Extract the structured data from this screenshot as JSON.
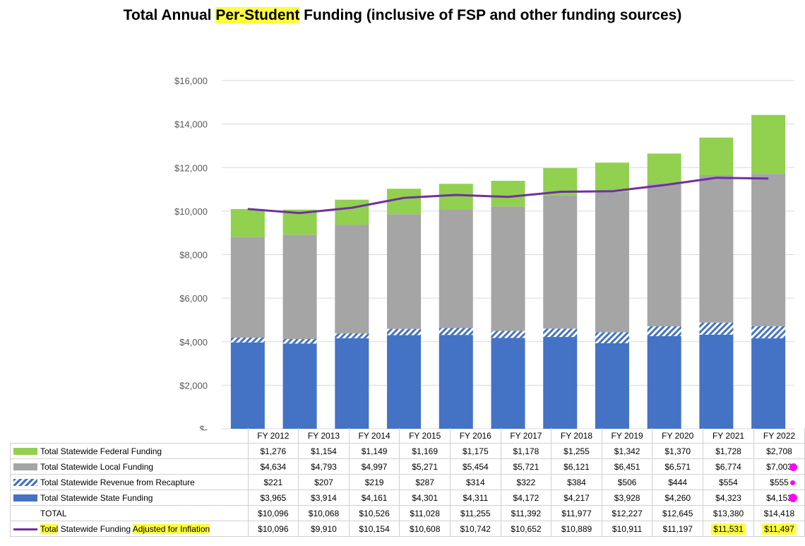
{
  "chart_data": {
    "type": "bar",
    "stacked": true,
    "title": "Total Annual Per-Student Funding (inclusive of FSP and other funding sources)",
    "title_parts": {
      "before": "Total Annual ",
      "highlighted": "Per-Student",
      "after": " Funding (inclusive of FSP and other funding sources)"
    },
    "categories": [
      "FY 2012",
      "FY 2013",
      "FY 2014",
      "FY 2015",
      "FY 2016",
      "FY 2017",
      "FY 2018",
      "FY 2019",
      "FY 2020",
      "FY 2021",
      "FY 2022"
    ],
    "y_ticks": [
      "$-",
      "$2,000",
      "$4,000",
      "$6,000",
      "$8,000",
      "$10,000",
      "$12,000",
      "$14,000",
      "$16,000"
    ],
    "ylim": [
      0,
      16000
    ],
    "grid": true,
    "series": [
      {
        "name": "Total Statewide State Funding",
        "color": "#4472c4",
        "style": "solid",
        "values": [
          3965,
          3914,
          4161,
          4301,
          4311,
          4172,
          4217,
          3928,
          4260,
          4323,
          4153
        ],
        "labels": [
          "$3,965",
          "$3,914",
          "$4,161",
          "$4,301",
          "$4,311",
          "$4,172",
          "$4,217",
          "$3,928",
          "$4,260",
          "$4,323",
          "$4,153"
        ]
      },
      {
        "name": "Total Statewide Revenue from Recapture",
        "color": "#4472c4",
        "style": "hatch",
        "values": [
          221,
          207,
          219,
          287,
          314,
          322,
          384,
          506,
          444,
          554,
          555
        ],
        "labels": [
          "$221",
          "$207",
          "$219",
          "$287",
          "$314",
          "$322",
          "$384",
          "$506",
          "$444",
          "$554",
          "$555"
        ]
      },
      {
        "name": "Total Statewide Local Funding",
        "color": "#a5a5a5",
        "style": "solid",
        "values": [
          4634,
          4793,
          4997,
          5271,
          5454,
          5721,
          6121,
          6451,
          6571,
          6774,
          7003
        ],
        "labels": [
          "$4,634",
          "$4,793",
          "$4,997",
          "$5,271",
          "$5,454",
          "$5,721",
          "$6,121",
          "$6,451",
          "$6,571",
          "$6,774",
          "$7,003"
        ]
      },
      {
        "name": "Total Statewide Federal Funding",
        "color": "#92d050",
        "style": "solid",
        "values": [
          1276,
          1154,
          1149,
          1169,
          1175,
          1178,
          1255,
          1342,
          1370,
          1728,
          2708
        ],
        "labels": [
          "$1,276",
          "$1,154",
          "$1,149",
          "$1,169",
          "$1,175",
          "$1,178",
          "$1,255",
          "$1,342",
          "$1,370",
          "$1,728",
          "$2,708"
        ]
      }
    ],
    "total": {
      "name": "TOTAL",
      "labels": [
        "$10,096",
        "$10,068",
        "$10,526",
        "$11,028",
        "$11,255",
        "$11,392",
        "$11,977",
        "$12,227",
        "$12,645",
        "$13,380",
        "$14,418"
      ]
    },
    "line_series": {
      "name_parts": {
        "highlight1": "Total",
        "middle": " Statewide Funding ",
        "highlight2": "Adjusted for Inflation"
      },
      "color": "#7030a0",
      "values": [
        10096,
        9910,
        10154,
        10608,
        10742,
        10652,
        10889,
        10911,
        11197,
        11531,
        11497
      ],
      "labels": [
        "$10,096",
        "$9,910",
        "$10,154",
        "$10,608",
        "$10,742",
        "$10,652",
        "$10,889",
        "$10,911",
        "$11,197",
        "$11,531",
        "$11,497"
      ],
      "highlighted_cells": [
        9,
        10
      ]
    },
    "annotation_colors": {
      "highlight": "#ffff3b",
      "dots": "#ff00ff"
    }
  }
}
